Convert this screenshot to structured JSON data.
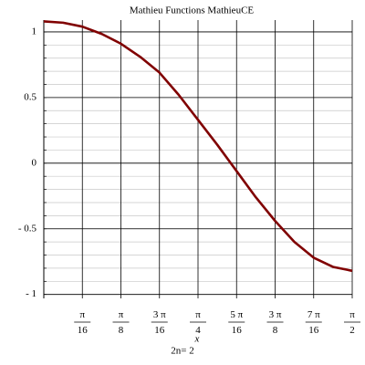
{
  "chart_data": {
    "type": "line",
    "title": "Mathieu Functions   MathieuCE",
    "x_label": "x",
    "annotation": "2n= 2",
    "x": [
      0,
      0.0982,
      0.1963,
      0.2945,
      0.3927,
      0.4909,
      0.589,
      0.6872,
      0.7854,
      0.8836,
      0.9817,
      1.0799,
      1.1781,
      1.2763,
      1.3744,
      1.4726,
      1.5708
    ],
    "series": [
      {
        "name": "MathieuCE",
        "color": "#800000",
        "values": [
          1.08,
          1.07,
          1.04,
          0.985,
          0.91,
          0.81,
          0.69,
          0.52,
          0.33,
          0.14,
          -0.06,
          -0.26,
          -0.44,
          -0.6,
          -0.72,
          -0.79,
          -0.82
        ]
      }
    ],
    "xlim": [
      0,
      1.5708
    ],
    "ylim": [
      -1.03,
      1.09
    ],
    "xticks": [
      {
        "value": 0.19635,
        "label": "π/16"
      },
      {
        "value": 0.3927,
        "label": "π/8"
      },
      {
        "value": 0.58905,
        "label": "3 π/16"
      },
      {
        "value": 0.7854,
        "label": "π/4"
      },
      {
        "value": 0.98175,
        "label": "5 π/16"
      },
      {
        "value": 1.1781,
        "label": "3 π/8"
      },
      {
        "value": 1.37445,
        "label": "7 π/16"
      },
      {
        "value": 1.5708,
        "label": "π/2"
      }
    ],
    "yticks": [
      1,
      0.5,
      0,
      {
        "value": -0.5,
        "label": "- 0.5"
      },
      {
        "value": -1,
        "label": "- 1"
      }
    ],
    "y_minor_step": 0.1,
    "grid": true
  }
}
